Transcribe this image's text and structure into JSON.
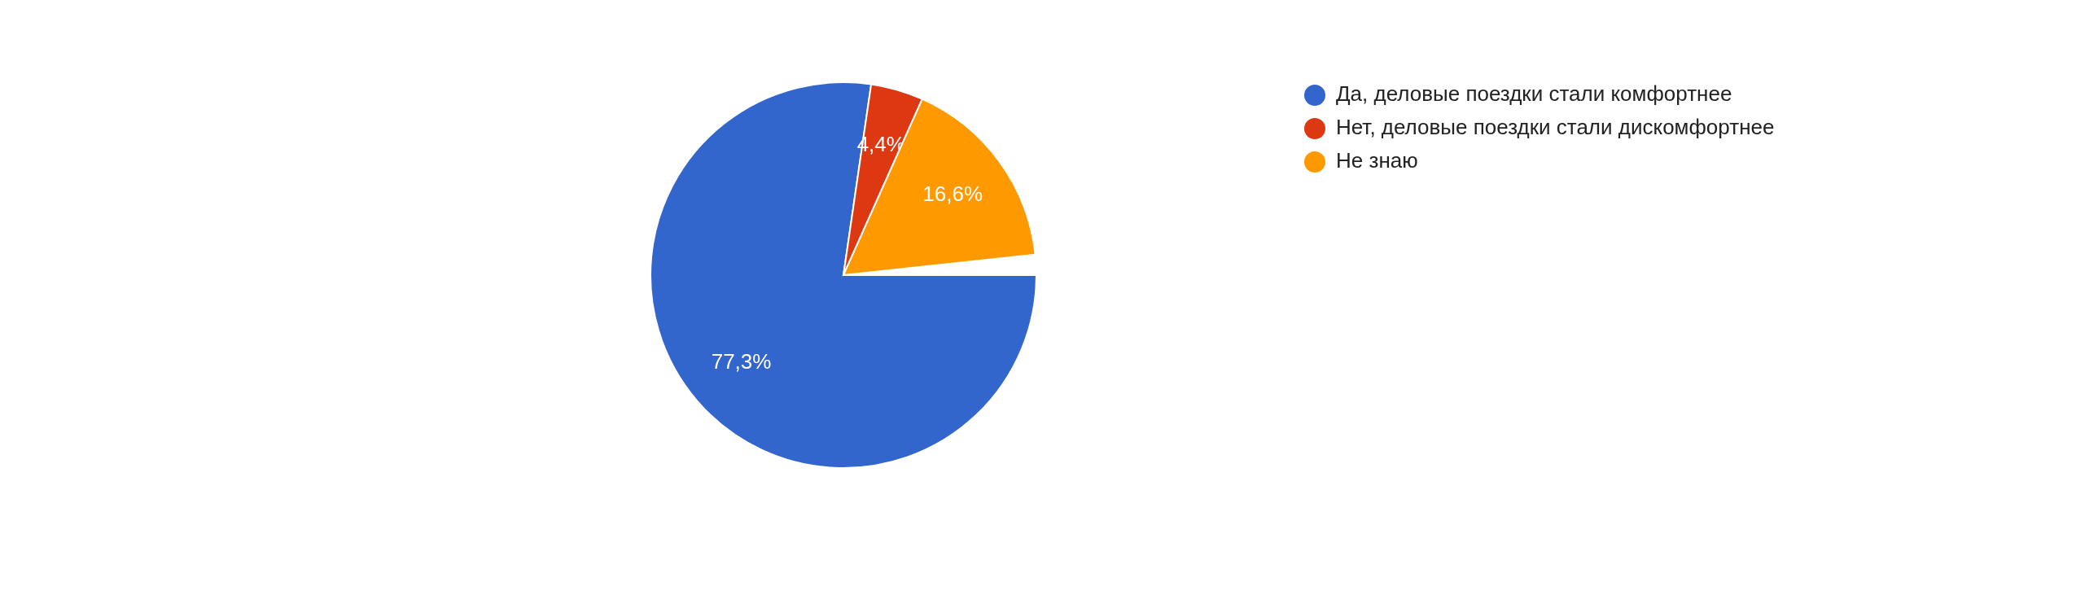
{
  "chart_data": {
    "type": "pie",
    "categories": [
      "Да, деловые поездки стали комфортнее",
      "Нет, деловые поездки стали дискомфортнее",
      "Не знаю"
    ],
    "values": [
      77.3,
      4.4,
      16.6
    ],
    "colors": [
      "#3366cc",
      "#dc3912",
      "#ff9900"
    ],
    "value_labels": [
      "77,3%",
      "4,4%",
      "16,6%"
    ],
    "legend": "right"
  }
}
